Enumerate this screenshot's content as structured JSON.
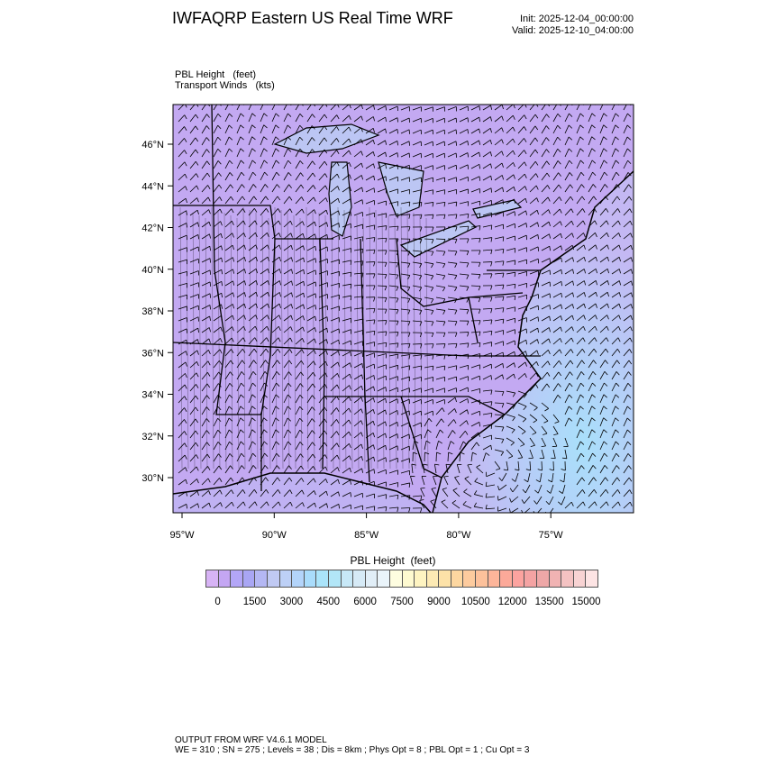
{
  "header": {
    "title": "IWFAQRP Eastern US Real Time WRF",
    "init": "Init: 2025-12-04_00:00:00",
    "valid": "Valid: 2025-12-10_04:00:00"
  },
  "subtitle": {
    "field": "PBL Height   (feet)",
    "winds": "Transport Winds   (kts)"
  },
  "map": {
    "lat_labels": [
      "46°N",
      "44°N",
      "42°N",
      "40°N",
      "38°N",
      "36°N",
      "34°N",
      "32°N",
      "30°N"
    ],
    "lon_labels": [
      "95°W",
      "90°W",
      "85°W",
      "80°W",
      "75°W"
    ],
    "land_color": "#c3a9f2",
    "ocean_color": "#b4d8f5"
  },
  "colorbar": {
    "title": "PBL Height  (feet)",
    "labels": [
      "0",
      "1500",
      "3000",
      "4500",
      "6000",
      "7500",
      "9000",
      "10500",
      "12000",
      "13500",
      "15000"
    ],
    "colors": [
      "#d7b3f5",
      "#c4a6f3",
      "#b3a6f7",
      "#a9a6f4",
      "#b4b7f3",
      "#c0c9f3",
      "#bdd0f6",
      "#b3d4fa",
      "#a9dcfb",
      "#aae4fa",
      "#b2e6f7",
      "#c7e8f7",
      "#d6eaf6",
      "#e1eef7",
      "#eaf4fa",
      "#fefde0",
      "#fefad0",
      "#fef4c1",
      "#fdeab4",
      "#fde2a8",
      "#fdd7a0",
      "#fdcb9e",
      "#fdc19b",
      "#fdb59a",
      "#fca999",
      "#fca39f",
      "#f4a3a3",
      "#eea7a7",
      "#f0b3b3",
      "#f4c2c2",
      "#f8d3d3",
      "#fde4e4"
    ]
  },
  "footer": {
    "line1": "OUTPUT FROM WRF V4.6.1 MODEL",
    "line2": "WE = 310 ; SN = 275 ; Levels = 38 ; Dis = 8km ; Phys Opt = 8 ; PBL Opt = 1 ; Cu Opt = 3"
  }
}
